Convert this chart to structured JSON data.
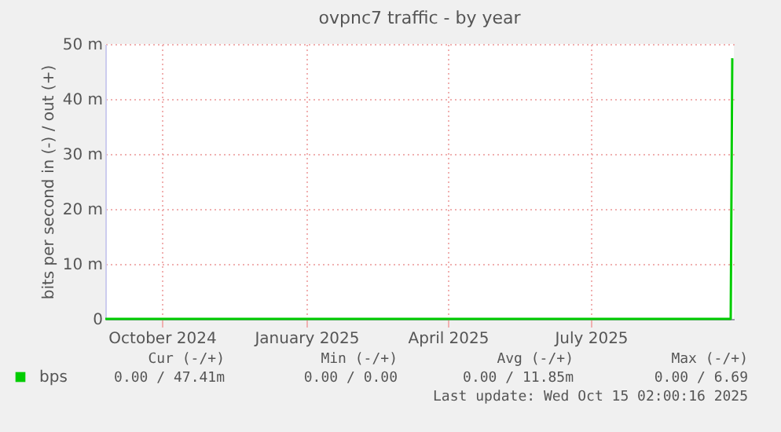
{
  "chart_data": {
    "type": "line",
    "title": "ovpnc7 traffic - by year",
    "ylabel": "bits per second in (-) / out (+)",
    "x": [
      "2024-09-10",
      "2025-10-13",
      "2025-10-14"
    ],
    "series": [
      {
        "name": "bps",
        "color": "#00cc00",
        "values": [
          0,
          0,
          47.41
        ]
      }
    ],
    "xlim": [
      "2024-09-10",
      "2025-10-15"
    ],
    "xticks": [
      {
        "value": "2024-10-16",
        "label": "October 2024"
      },
      {
        "value": "2025-01-16",
        "label": "January 2025"
      },
      {
        "value": "2025-04-16",
        "label": "April 2025"
      },
      {
        "value": "2025-07-16",
        "label": "July 2025"
      }
    ],
    "ylim": [
      0,
      50
    ],
    "yticks": [
      {
        "value": 0,
        "label": "0"
      },
      {
        "value": 10,
        "label": "10 m"
      },
      {
        "value": 20,
        "label": "20 m"
      },
      {
        "value": 30,
        "label": "30 m"
      },
      {
        "value": 40,
        "label": "40 m"
      },
      {
        "value": 50,
        "label": "50 m"
      }
    ],
    "grid": true,
    "legend": "bottom",
    "annotations": [
      "Cur (-/+)",
      "Min (-/+)",
      "Avg (-/+)",
      "Max (-/+)",
      "0.00 / 47.41m",
      "0.00 /  0.00",
      "0.00 / 11.85m",
      "0.00 /  6.69",
      "Last update: Wed Oct 15 02:00:16 2025"
    ]
  }
}
